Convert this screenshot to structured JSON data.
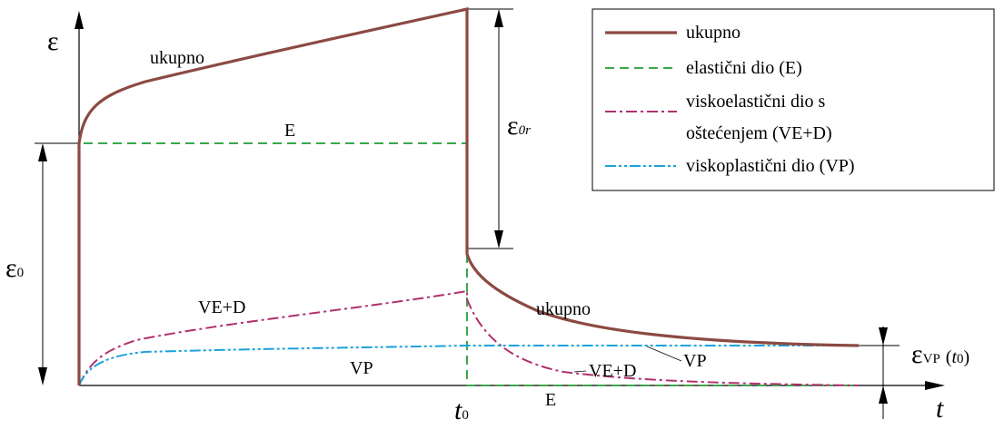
{
  "diagram": {
    "axis_y_symbol": "ε",
    "axis_x_symbol": "t",
    "t0_label": "t",
    "t0_sub": "0",
    "eps0_symbol": "ε",
    "eps0_sub": "0",
    "eps0r_symbol": "ε",
    "eps0r_sub": "0r",
    "epsvp_symbol": "ε",
    "epsvp_sub": "VP",
    "epsvp_arg_open": "(",
    "epsvp_arg_t": "t",
    "epsvp_arg_sub": "0",
    "epsvp_arg_close": ")",
    "curve_labels": {
      "ukupno_upper": "ukupno",
      "e_upper": "E",
      "ved_upper": "VE+D",
      "vp_upper": "VP",
      "ukupno_lower": "ukupno",
      "ved_lower": "VE+D",
      "vp_lower": "VP",
      "e_lower": "E"
    }
  },
  "legend": {
    "items": [
      {
        "label": "ukupno",
        "color": "#8b4a42",
        "style": "solid"
      },
      {
        "label": "elastični dio (E)",
        "color": "#3aa84a",
        "style": "dashed"
      },
      {
        "label_line1": "viskoelastični dio s",
        "label_line2": "oštećenjem  (VE+D)",
        "color": "#b0306e",
        "style": "dash-dot"
      },
      {
        "label": "viskoplastični dio  (VP)",
        "color": "#1aa3dc",
        "style": "dash-dot-dot"
      }
    ]
  },
  "colors": {
    "total": "#8b4a42",
    "elastic": "#3aa84a",
    "viscoelastic_damage": "#b0306e",
    "viscoplastic": "#1aa3dc",
    "axes": "#000000"
  }
}
